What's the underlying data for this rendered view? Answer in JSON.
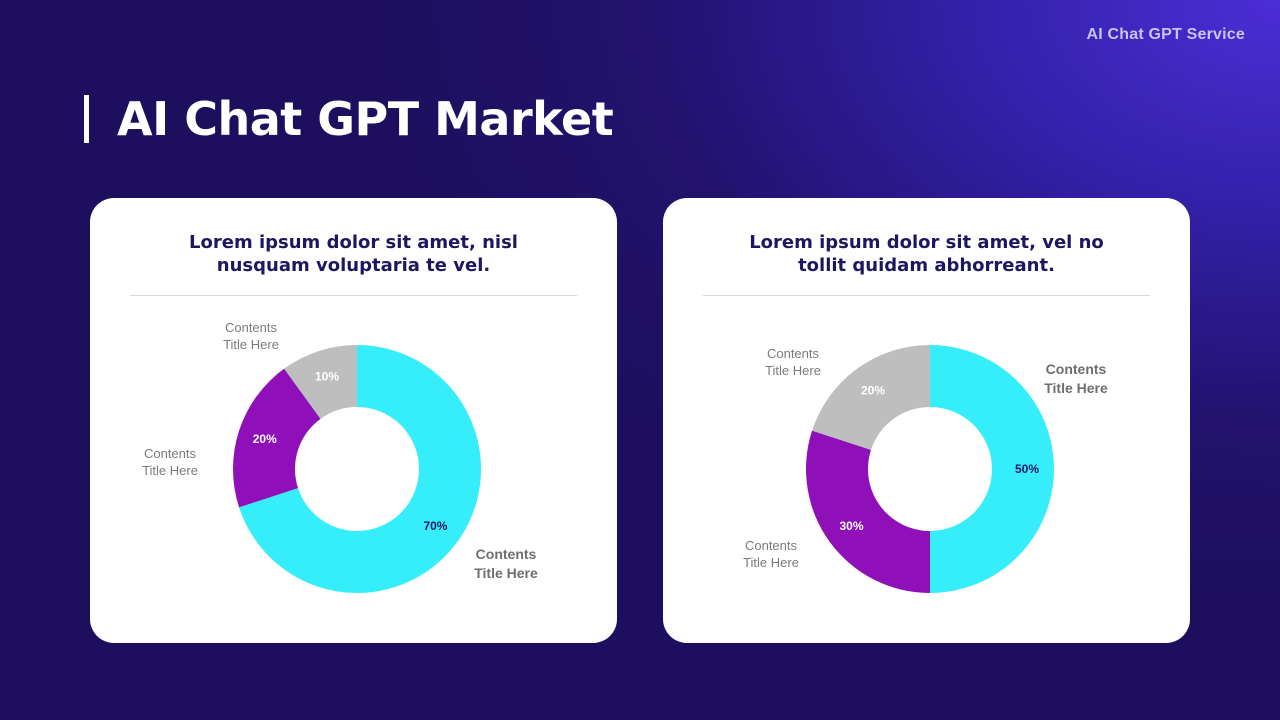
{
  "header": {
    "brand": "AI Chat GPT Service",
    "title": "AI Chat GPT Market"
  },
  "cards": [
    {
      "heading_line1": "Lorem ipsum dolor sit amet, nisl",
      "heading_line2": "nusquam voluptaria te vel."
    },
    {
      "heading_line1": "Lorem ipsum dolor sit amet, vel no",
      "heading_line2": "tollit quidam abhorreant."
    }
  ],
  "colors": {
    "cyan": "#35eefa",
    "purple": "#8f10b8",
    "gray": "#bebebe",
    "dark_text": "#1d1760"
  },
  "chart_data": [
    {
      "type": "pie",
      "title": "Lorem ipsum dolor sit amet, nisl nusquam voluptaria te vel.",
      "donut": true,
      "slices": [
        {
          "value": 70,
          "label": "70%",
          "category_line1": "Contents",
          "category_line2": "Title Here",
          "color": "#35eefa",
          "label_color": "#1d1760",
          "category_bold": true
        },
        {
          "value": 20,
          "label": "20%",
          "category_line1": "Contents",
          "category_line2": "Title Here",
          "color": "#8f10b8",
          "label_color": "#ffffff",
          "category_bold": false
        },
        {
          "value": 10,
          "label": "10%",
          "category_line1": "Contents",
          "category_line2": "Title Here",
          "color": "#bebebe",
          "label_color": "#ffffff",
          "category_bold": false
        }
      ]
    },
    {
      "type": "pie",
      "title": "Lorem ipsum dolor sit amet, vel no tollit quidam abhorreant.",
      "donut": true,
      "slices": [
        {
          "value": 50,
          "label": "50%",
          "category_line1": "Contents",
          "category_line2": "Title Here",
          "color": "#35eefa",
          "label_color": "#1d1760",
          "category_bold": true
        },
        {
          "value": 30,
          "label": "30%",
          "category_line1": "Contents",
          "category_line2": "Title Here",
          "color": "#8f10b8",
          "label_color": "#ffffff",
          "category_bold": false
        },
        {
          "value": 20,
          "label": "20%",
          "category_line1": "Contents",
          "category_line2": "Title Here",
          "color": "#bebebe",
          "label_color": "#ffffff",
          "category_bold": false
        }
      ]
    }
  ]
}
